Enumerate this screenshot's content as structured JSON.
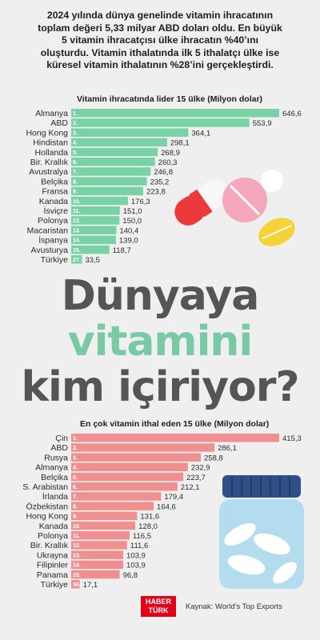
{
  "intro": {
    "line1": "2024 yılında dünya genelinde vitamin ihracatının",
    "line2": "toplam değeri 5,33 milyar ABD doları oldu. En büyük",
    "line3": "5 vitamin ihracatçısı ülke ihracatın %40’ını",
    "line4": "oluşturdu. Vitamin ithalatında ilk 5 ithalatçı ülke ise",
    "line5": "küresel vitamin ithalatının %28’ini gerçekleştirdi."
  },
  "headline": {
    "line1": "Dünyaya",
    "line2": "vitamini",
    "line3": "kim içiriyor?"
  },
  "logo": {
    "line1": "HABER",
    "line2": "TÜRK"
  },
  "source": "Kaynak: World’s Top Exports",
  "colors": {
    "export_bar": "#79d2a6",
    "import_bar": "#ef8f8f",
    "highlight_text": "#79c9a4",
    "headline_text": "#555555"
  },
  "chart_data": [
    {
      "type": "bar",
      "orientation": "horizontal",
      "title": "Vitamin ihracatında lider 15 ülke (Milyon dolar)",
      "categories": [
        "Almanya",
        "ABD",
        "Hong Kong",
        "Hindistan",
        "Hollanda",
        "Bir. Krallık",
        "Avustralya",
        "Belçika",
        "Fransa",
        "Kanada",
        "İsviçre",
        "Polonya",
        "Macaristan",
        "İspanya",
        "Avusturya",
        "Türkiye"
      ],
      "ranks": [
        "1.",
        "2.",
        "3.",
        "4.",
        "5.",
        "6.",
        "7.",
        "8.",
        "9.",
        "10.",
        "11.",
        "12.",
        "13.",
        "14.",
        "15.",
        "27."
      ],
      "values": [
        646.6,
        553.9,
        364.1,
        298.1,
        268.9,
        260.3,
        246.8,
        235.2,
        223.8,
        176.3,
        151.0,
        150.0,
        140.4,
        139.0,
        118.7,
        33.5
      ],
      "value_labels": [
        "646,6",
        "553,9",
        "364,1",
        "298,1",
        "268,9",
        "260,3",
        "246,8",
        "235,2",
        "223,8",
        "176,3",
        "151,0",
        "150,0",
        "140,4",
        "139,0",
        "118,7",
        "33,5"
      ],
      "xlim": [
        0,
        646.6
      ]
    },
    {
      "type": "bar",
      "orientation": "horizontal",
      "title": "En çok vitamin ithal eden 15 ülke (Milyon dolar)",
      "categories": [
        "Çin",
        "ABD",
        "Rusya",
        "Almanya",
        "Belçika",
        "S. Arabistan",
        "İrlanda",
        "Özbekistan",
        "Hong Kong",
        "Kanada",
        "Polonya",
        "Bir. Krallık",
        "Ukrayna",
        "Filipinler",
        "Panama",
        "Türkiye"
      ],
      "ranks": [
        "1.",
        "2.",
        "3.",
        "4.",
        "5.",
        "6.",
        "7.",
        "8.",
        "9.",
        "10.",
        "11.",
        "12.",
        "13.",
        "14.",
        "15.",
        "56."
      ],
      "values": [
        415.3,
        286.1,
        258.8,
        232.9,
        223.7,
        212.1,
        179.4,
        164.6,
        131.6,
        128.0,
        116.5,
        111.6,
        103.9,
        103.9,
        96.8,
        17.1
      ],
      "value_labels": [
        "415,3",
        "286,1",
        "258,8",
        "232,9",
        "223,7",
        "212,1",
        "179,4",
        "164,6",
        "131,6",
        "128,0",
        "116,5",
        "111,6",
        "103,9",
        "103,9",
        "96,8",
        "17,1"
      ],
      "xlim": [
        0,
        415.3
      ]
    }
  ]
}
